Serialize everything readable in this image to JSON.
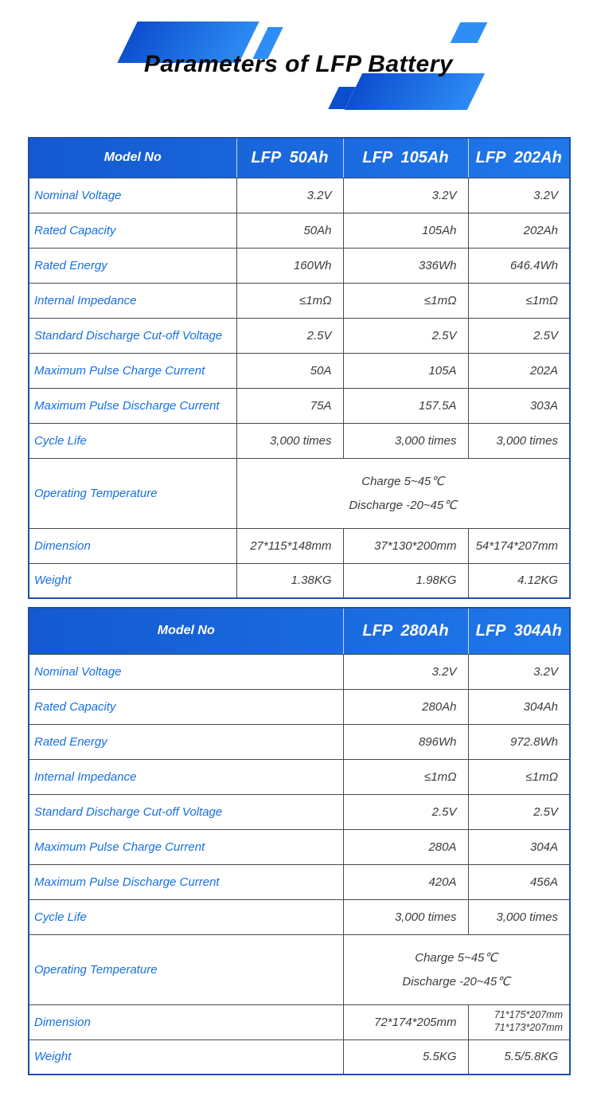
{
  "page": {
    "title": "Parameters of LFP Battery"
  },
  "colors": {
    "brand_blue": "#1b6ae0",
    "ribbon_blue_dark": "#0d4ecf",
    "ribbon_blue_light": "#2d8cf4",
    "header_text": "#ffffff",
    "label_text": "#176fe0",
    "value_text": "#3b3b3b",
    "grid_line": "#4a4a4a"
  },
  "tables": [
    {
      "header": {
        "model_label": "Model No",
        "columns": [
          "LFP  50Ah",
          "LFP  105Ah",
          "LFP  202Ah"
        ]
      },
      "rows": [
        {
          "label": "Nominal Voltage",
          "values": [
            "3.2V",
            "3.2V",
            "3.2V"
          ]
        },
        {
          "label": "Rated Capacity",
          "values": [
            "50Ah",
            "105Ah",
            "202Ah"
          ]
        },
        {
          "label": "Rated Energy",
          "values": [
            "160Wh",
            "336Wh",
            "646.4Wh"
          ]
        },
        {
          "label": "Internal Impedance",
          "values": [
            "≤1mΩ",
            "≤1mΩ",
            "≤1mΩ"
          ]
        },
        {
          "label": "Standard Discharge Cut-off Voltage",
          "values": [
            "2.5V",
            "2.5V",
            "2.5V"
          ]
        },
        {
          "label": "Maximum Pulse Charge Current",
          "values": [
            "50A",
            "105A",
            "202A"
          ]
        },
        {
          "label": "Maximum Pulse Discharge Current",
          "values": [
            "75A",
            "157.5A",
            "303A"
          ]
        },
        {
          "label": "Cycle Life",
          "values": [
            "3,000 times",
            "3,000 times",
            "3,000 times"
          ]
        },
        {
          "label": "Operating Temperature",
          "span_lines": [
            "Charge 5~45℃",
            "Discharge -20~45℃"
          ]
        },
        {
          "label": "Dimension",
          "values": [
            "27*115*148mm",
            "37*130*200mm",
            "54*174*207mm"
          ]
        },
        {
          "label": "Weight",
          "values": [
            "1.38KG",
            "1.98KG",
            "4.12KG"
          ]
        }
      ]
    },
    {
      "header": {
        "model_label": "Model No",
        "columns": [
          "LFP  280Ah",
          "LFP  304Ah"
        ]
      },
      "rows": [
        {
          "label": "Nominal Voltage",
          "values": [
            "3.2V",
            "3.2V"
          ]
        },
        {
          "label": "Rated Capacity",
          "values": [
            "280Ah",
            "304Ah"
          ]
        },
        {
          "label": "Rated Energy",
          "values": [
            "896Wh",
            "972.8Wh"
          ]
        },
        {
          "label": "Internal Impedance",
          "values": [
            "≤1mΩ",
            "≤1mΩ"
          ]
        },
        {
          "label": "Standard Discharge Cut-off Voltage",
          "values": [
            "2.5V",
            "2.5V"
          ]
        },
        {
          "label": "Maximum Pulse Charge Current",
          "values": [
            "280A",
            "304A"
          ]
        },
        {
          "label": "Maximum Pulse Discharge Current",
          "values": [
            "420A",
            "456A"
          ]
        },
        {
          "label": "Cycle Life",
          "values": [
            "3,000 times",
            "3,000 times"
          ]
        },
        {
          "label": "Operating Temperature",
          "span_lines": [
            "Charge 5~45℃",
            "Discharge -20~45℃"
          ]
        },
        {
          "label": "Dimension",
          "values": [
            "72*174*205mm",
            [
              "71*175*207mm",
              "71*173*207mm"
            ]
          ]
        },
        {
          "label": "Weight",
          "values": [
            "5.5KG",
            "5.5/5.8KG"
          ]
        }
      ]
    }
  ]
}
